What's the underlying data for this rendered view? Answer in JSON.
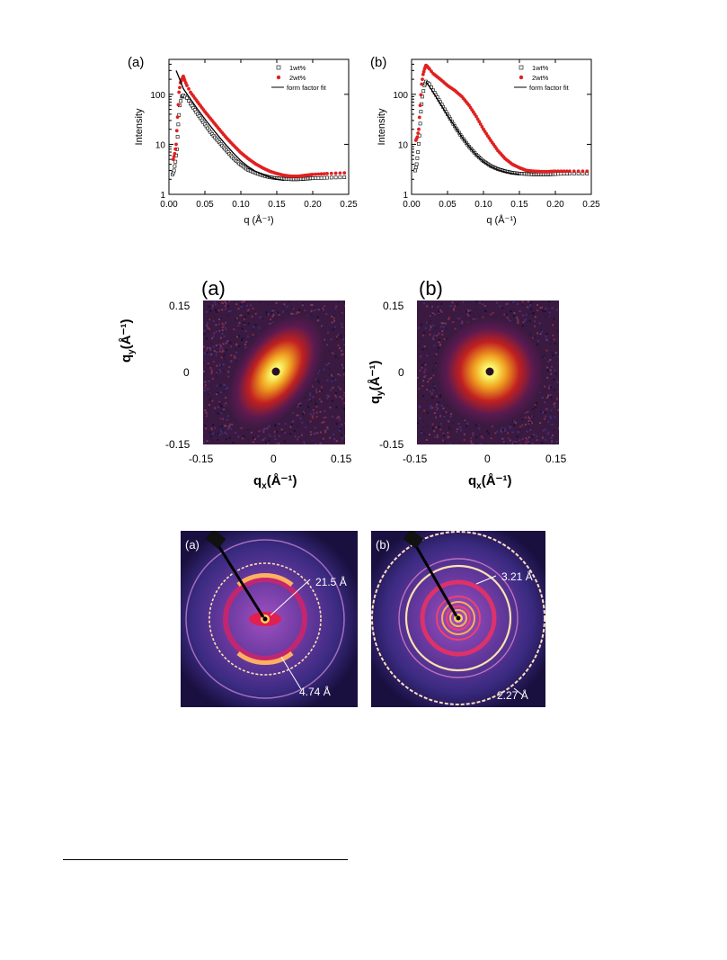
{
  "figure1": {
    "panels": [
      {
        "label": "(a)",
        "chart_data": {
          "type": "scatter",
          "xlabel": "q (Å⁻¹)",
          "ylabel": "Intensity",
          "yscale": "log",
          "xlim": [
            0.0,
            0.25
          ],
          "ylim": [
            1,
            500
          ],
          "xticks": [
            "0.00",
            "0.05",
            "0.10",
            "0.15",
            "0.20",
            "0.25"
          ],
          "yticks": [
            "1",
            "10",
            "100"
          ],
          "legend": {
            "placement": "top-right",
            "entries": [
              "1wt%",
              "2wt%",
              "form factor fit"
            ]
          },
          "series": [
            {
              "name": "1wt%",
              "marker": "open-square",
              "color": "#000000",
              "x": [
                0.005,
                0.007,
                0.009,
                0.011,
                0.013,
                0.015,
                0.018,
                0.02,
                0.025,
                0.03,
                0.04,
                0.05,
                0.06,
                0.07,
                0.08,
                0.09,
                0.1,
                0.11,
                0.12,
                0.13,
                0.14,
                0.15,
                0.16,
                0.17,
                0.18,
                0.19,
                0.2,
                0.22,
                0.25
              ],
              "y": [
                2.5,
                3,
                4.5,
                8,
                25,
                60,
                90,
                95,
                85,
                65,
                40,
                25,
                16,
                11,
                7.5,
                5.2,
                3.9,
                3.1,
                2.7,
                2.4,
                2.2,
                2.1,
                2.05,
                2.0,
                2.0,
                2.05,
                2.1,
                2.15,
                2.2
              ]
            },
            {
              "name": "2wt%",
              "marker": "filled-circle",
              "color": "#e02020",
              "x": [
                0.006,
                0.008,
                0.01,
                0.012,
                0.014,
                0.016,
                0.018,
                0.02,
                0.022,
                0.025,
                0.03,
                0.04,
                0.05,
                0.06,
                0.07,
                0.08,
                0.09,
                0.1,
                0.11,
                0.12,
                0.13,
                0.14,
                0.15,
                0.16,
                0.17,
                0.18,
                0.19,
                0.2,
                0.22,
                0.25
              ],
              "y": [
                5,
                6.5,
                10,
                35,
                110,
                170,
                200,
                230,
                190,
                150,
                110,
                70,
                45,
                30,
                20,
                13.5,
                9.5,
                6.8,
                5.2,
                4.1,
                3.4,
                2.9,
                2.6,
                2.4,
                2.3,
                2.3,
                2.4,
                2.5,
                2.6,
                2.7
              ]
            },
            {
              "name": "form factor fit",
              "marker": "line",
              "color": "#000000",
              "x": [
                0.01,
                0.015,
                0.02,
                0.03,
                0.04,
                0.05,
                0.06,
                0.07,
                0.08,
                0.09,
                0.1,
                0.11,
                0.12,
                0.13,
                0.14,
                0.15,
                0.16
              ],
              "y": [
                300,
                200,
                130,
                80,
                50,
                32,
                21,
                14,
                9.5,
                6.6,
                4.7,
                3.6,
                2.9,
                2.5,
                2.2,
                2.0,
                1.9
              ]
            }
          ]
        }
      },
      {
        "label": "(b)",
        "chart_data": {
          "type": "scatter",
          "xlabel": "q (Å⁻¹)",
          "ylabel": "Intensity",
          "yscale": "log",
          "xlim": [
            0.0,
            0.25
          ],
          "ylim": [
            1,
            500
          ],
          "xticks": [
            "0.00",
            "0.05",
            "0.10",
            "0.15",
            "0.20",
            "0.25"
          ],
          "yticks": [
            "1",
            "10",
            "100"
          ],
          "legend": {
            "placement": "top-right",
            "entries": [
              "1wt%",
              "2wt%",
              "form factor fit"
            ]
          },
          "series": [
            {
              "name": "1wt%",
              "marker": "open-square",
              "color": "#000000",
              "x": [
                0.005,
                0.007,
                0.009,
                0.011,
                0.013,
                0.015,
                0.018,
                0.02,
                0.025,
                0.03,
                0.04,
                0.05,
                0.06,
                0.07,
                0.08,
                0.09,
                0.1,
                0.11,
                0.12,
                0.13,
                0.14,
                0.15,
                0.16,
                0.17,
                0.18,
                0.19,
                0.2,
                0.22,
                0.25
              ],
              "y": [
                3,
                4,
                7,
                15,
                45,
                90,
                150,
                180,
                160,
                120,
                70,
                40,
                23,
                14,
                9,
                6.2,
                4.6,
                3.7,
                3.2,
                2.9,
                2.7,
                2.6,
                2.55,
                2.5,
                2.5,
                2.5,
                2.55,
                2.6,
                2.6
              ]
            },
            {
              "name": "2wt%",
              "marker": "filled-circle",
              "color": "#e02020",
              "x": [
                0.006,
                0.008,
                0.01,
                0.012,
                0.014,
                0.016,
                0.018,
                0.02,
                0.022,
                0.025,
                0.03,
                0.04,
                0.05,
                0.06,
                0.07,
                0.08,
                0.09,
                0.1,
                0.11,
                0.12,
                0.13,
                0.14,
                0.15,
                0.16,
                0.17,
                0.18,
                0.19,
                0.2,
                0.22,
                0.25
              ],
              "y": [
                12,
                14,
                20,
                60,
                160,
                250,
                320,
                380,
                360,
                320,
                260,
                200,
                150,
                120,
                90,
                60,
                36,
                20,
                12,
                7.5,
                5.2,
                4.0,
                3.4,
                3.0,
                2.9,
                2.85,
                2.85,
                2.9,
                2.9,
                2.9
              ]
            },
            {
              "name": "form factor fit",
              "marker": "line",
              "color": "#000000",
              "x": [
                0.02,
                0.03,
                0.04,
                0.05,
                0.06,
                0.07,
                0.08,
                0.09,
                0.1,
                0.11,
                0.12,
                0.13,
                0.14,
                0.15
              ],
              "y": [
                180,
                110,
                65,
                38,
                23,
                14,
                9,
                6.1,
                4.5,
                3.6,
                3.1,
                2.8,
                2.6,
                2.5
              ]
            }
          ]
        }
      }
    ]
  },
  "figure2": {
    "panels": [
      {
        "label": "(a)",
        "anisotropic": true
      },
      {
        "label": "(b)",
        "anisotropic": false
      }
    ],
    "xlabel_base": "q",
    "xlabel_sub": "x",
    "xlabel_unit": "(Å⁻¹)",
    "ylabel_base": "q",
    "ylabel_sub": "y",
    "ylabel_unit": "(Å⁻¹)",
    "xticks": [
      "-0.15",
      "0",
      "0.15"
    ],
    "yticks": [
      "0.15",
      "0",
      "-0.15"
    ]
  },
  "figure3": {
    "panels": [
      {
        "label": "(a)",
        "annotations": [
          "21.5 Å",
          "4.74 Å"
        ]
      },
      {
        "label": "(b)",
        "annotations": [
          "3.21 Å",
          "2.27 Å"
        ]
      }
    ]
  },
  "colors": {
    "red_series": "#e02020",
    "detector_bg": "#1a1040",
    "saxs_bg": "#3a1a40"
  }
}
